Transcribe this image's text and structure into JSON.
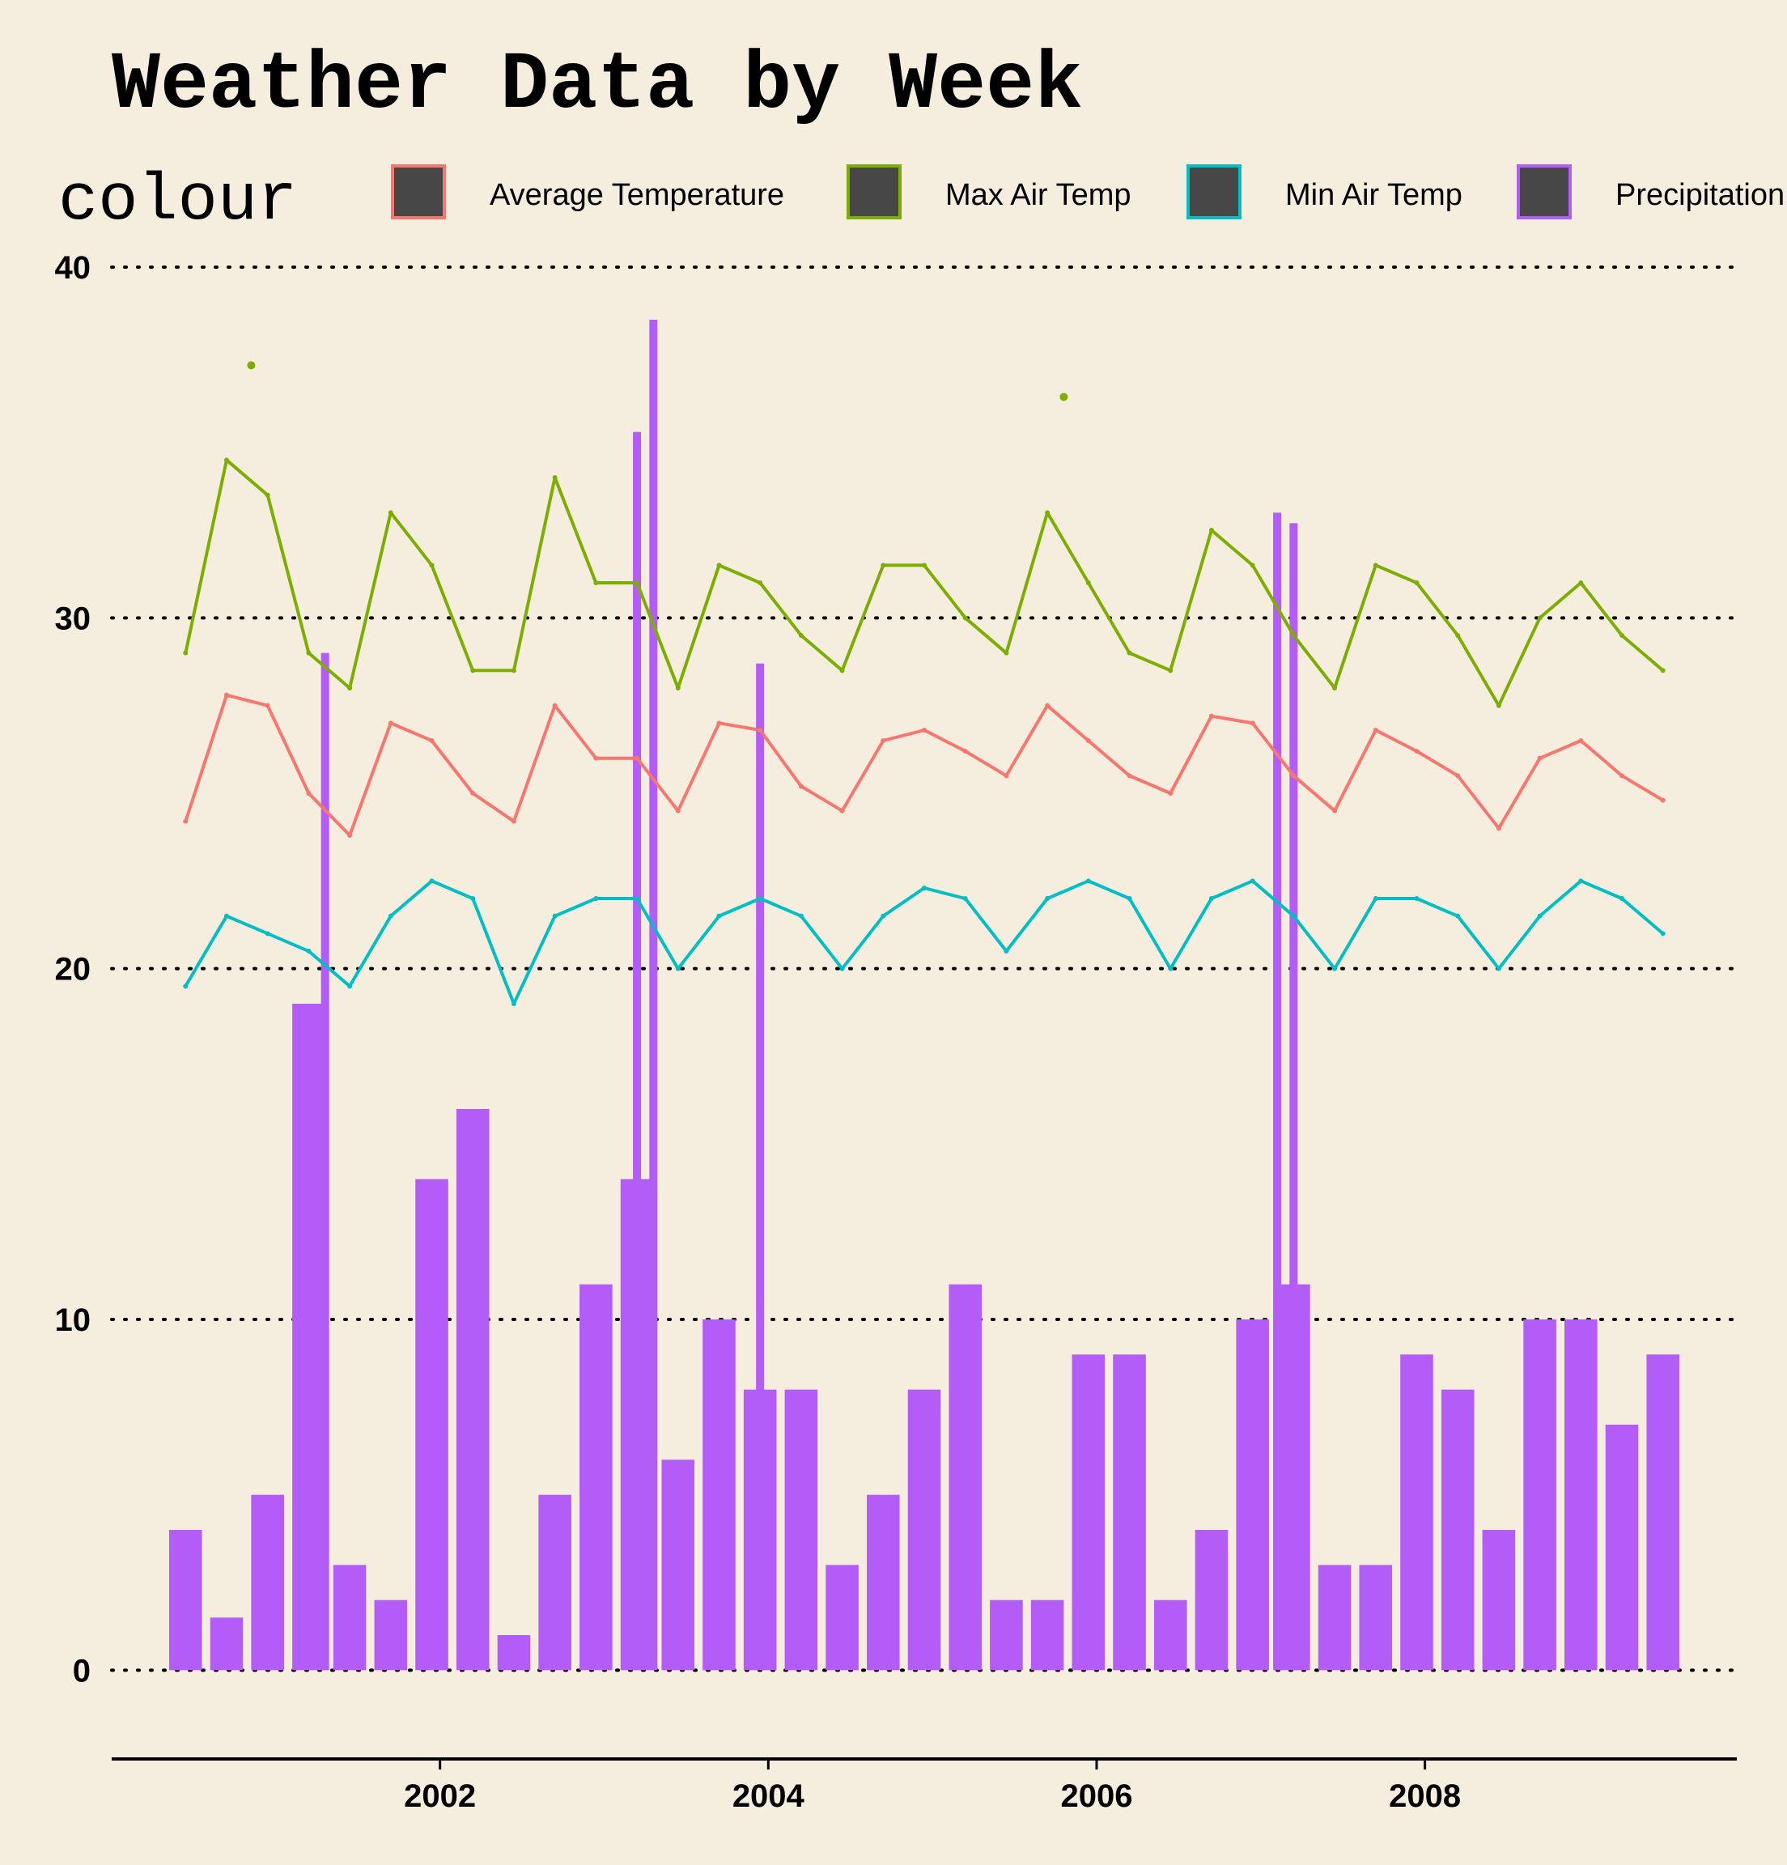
{
  "chart_data": {
    "type": "line",
    "title": "Weather Data by Week",
    "xlabel": "",
    "ylabel": "",
    "ylim": [
      -2,
      40
    ],
    "y_ticks": [
      0,
      10,
      20,
      30,
      40
    ],
    "x_ticks": [
      2002,
      2004,
      2006,
      2008
    ],
    "xlim": [
      2000.0,
      2009.9
    ],
    "grid": "horizontal dotted",
    "legend": {
      "title": "colour",
      "placement": "top",
      "entries": [
        "Average Temperature",
        "Max Air Temp",
        "Min Air Temp",
        "Precipitation"
      ]
    },
    "x": [
      2000.45,
      2000.7,
      2000.95,
      2001.2,
      2001.45,
      2001.7,
      2001.95,
      2002.2,
      2002.45,
      2002.7,
      2002.95,
      2003.2,
      2003.45,
      2003.7,
      2003.95,
      2004.2,
      2004.45,
      2004.7,
      2004.95,
      2005.2,
      2005.45,
      2005.7,
      2005.95,
      2006.2,
      2006.45,
      2006.7,
      2006.95,
      2007.2,
      2007.45,
      2007.7,
      2007.95,
      2008.2,
      2008.45,
      2008.7,
      2008.95,
      2009.2,
      2009.45
    ],
    "series": [
      {
        "name": "Average Temperature",
        "color": "#f8766d",
        "mark": "line",
        "values": [
          24.2,
          27.8,
          27.5,
          25.0,
          23.8,
          27.0,
          26.5,
          25.0,
          24.2,
          27.5,
          26.0,
          26.0,
          24.5,
          27.0,
          26.8,
          25.2,
          24.5,
          26.5,
          26.8,
          26.2,
          25.5,
          27.5,
          26.5,
          25.5,
          25.0,
          27.2,
          27.0,
          25.5,
          24.5,
          26.8,
          26.2,
          25.5,
          24.0,
          26.0,
          26.5,
          25.5,
          24.8
        ]
      },
      {
        "name": "Max Air Temp",
        "color": "#7cae00",
        "mark": "line",
        "values": [
          29.0,
          34.5,
          33.5,
          29.0,
          28.0,
          33.0,
          31.5,
          28.5,
          28.5,
          34.0,
          31.0,
          31.0,
          28.0,
          31.5,
          31.0,
          29.5,
          28.5,
          31.5,
          31.5,
          30.0,
          29.0,
          33.0,
          31.0,
          29.0,
          28.5,
          32.5,
          31.5,
          29.5,
          28.0,
          31.5,
          31.0,
          29.5,
          27.5,
          30.0,
          31.0,
          29.5,
          28.5
        ]
      },
      {
        "name": "Min Air Temp",
        "color": "#00bfc4",
        "mark": "line",
        "values": [
          19.5,
          21.5,
          21.0,
          20.5,
          19.5,
          21.5,
          22.5,
          22.0,
          19.0,
          21.5,
          22.0,
          22.0,
          20.0,
          21.5,
          22.0,
          21.5,
          20.0,
          21.5,
          22.3,
          22.0,
          20.5,
          22.0,
          22.5,
          22.0,
          20.0,
          22.0,
          22.5,
          21.5,
          20.0,
          22.0,
          22.0,
          21.5,
          20.0,
          21.5,
          22.5,
          22.0,
          21.0
        ]
      },
      {
        "name": "Precipitation",
        "color": "#b45cf7",
        "mark": "bar",
        "values": [
          4.0,
          1.5,
          5.0,
          19.0,
          3.0,
          2.0,
          14.0,
          16.0,
          1.0,
          5.0,
          11.0,
          14.0,
          6.0,
          10.0,
          8.0,
          8.0,
          3.0,
          5.0,
          8.0,
          11.0,
          2.0,
          2.0,
          9.0,
          9.0,
          2.0,
          4.0,
          10.0,
          11.0,
          3.0,
          3.0,
          9.0,
          8.0,
          4.0,
          10.0,
          10.0,
          7.0,
          9.0
        ]
      }
    ],
    "highlights": [
      {
        "series": "Precipitation",
        "x": 2003.3,
        "value": 38.5
      },
      {
        "series": "Precipitation",
        "x": 2003.2,
        "value": 35.3
      },
      {
        "series": "Precipitation",
        "x": 2007.1,
        "value": 33.0
      },
      {
        "series": "Precipitation",
        "x": 2007.2,
        "value": 32.7
      },
      {
        "series": "Precipitation",
        "x": 2001.3,
        "value": 29.0
      },
      {
        "series": "Precipitation",
        "x": 2003.95,
        "value": 28.7
      },
      {
        "series": "Max Air Temp",
        "x": 2000.85,
        "value": 37.2
      },
      {
        "series": "Max Air Temp",
        "x": 2005.8,
        "value": 36.3
      }
    ]
  }
}
